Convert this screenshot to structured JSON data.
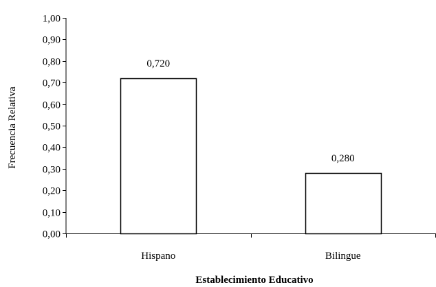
{
  "chart_data": {
    "type": "bar",
    "title": "",
    "xlabel": "Establecimiento Educativo",
    "ylabel": "Frecuencia Relativa",
    "categories": [
      "Hispano",
      "Bilingue"
    ],
    "values": [
      0.72,
      0.28
    ],
    "value_labels": [
      "0,720",
      "0,280"
    ],
    "ylim": [
      0,
      1
    ],
    "yticks": [
      0,
      0.1,
      0.2,
      0.3,
      0.4,
      0.5,
      0.6,
      0.7,
      0.8,
      0.9,
      1.0
    ],
    "ytick_labels": [
      "0,00",
      "0,10",
      "0,20",
      "0,30",
      "0,40",
      "0,50",
      "0,60",
      "0,70",
      "0,80",
      "0,90",
      "1,00"
    ],
    "grid": false,
    "legend": "none",
    "colors": {
      "bar_fill": "#ffffff",
      "bar_stroke": "#000000",
      "axis": "#000000",
      "text": "#000000"
    }
  }
}
